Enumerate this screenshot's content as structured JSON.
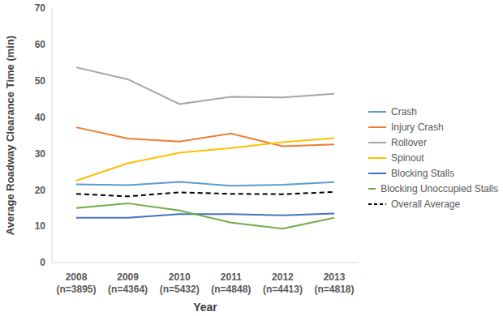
{
  "chart_data": {
    "type": "line",
    "x_label": "Year",
    "y_label": "Average Roadway Clearance Time (min)",
    "categories": [
      "2008\n(n=3895)",
      "2009\n(n=4364)",
      "2010\n(n=5432)",
      "2011\n(n=4848)",
      "2012\n(n=4413)",
      "2013\n(n=4818)"
    ],
    "ylim": [
      0,
      70
    ],
    "yticks": [
      0,
      10,
      20,
      30,
      40,
      50,
      60,
      70
    ],
    "grid": false,
    "legend": "right",
    "series": [
      {
        "name": "Crash",
        "color": "#5b9bd5",
        "line_style": "solid",
        "values": [
          21.5,
          21.3,
          22.2,
          21.1,
          21.4,
          22.1
        ]
      },
      {
        "name": "Injury Crash",
        "color": "#ed7d31",
        "line_style": "solid",
        "values": [
          37.2,
          34.1,
          33.3,
          35.5,
          32.0,
          32.5
        ]
      },
      {
        "name": "Rollover",
        "color": "#a5a5a5",
        "line_style": "solid",
        "values": [
          53.7,
          50.4,
          43.6,
          45.6,
          45.4,
          46.4
        ]
      },
      {
        "name": "Spinout",
        "color": "#ffc000",
        "line_style": "solid",
        "values": [
          22.5,
          27.3,
          30.2,
          31.5,
          33.1,
          34.2
        ]
      },
      {
        "name": "Blocking Stalls",
        "color": "#4472c4",
        "line_style": "solid",
        "values": [
          12.3,
          12.3,
          13.3,
          13.3,
          13.0,
          13.5
        ]
      },
      {
        "name": "Blocking Unoccupied Stalls",
        "color": "#70ad47",
        "line_style": "solid",
        "values": [
          15.0,
          16.3,
          14.3,
          11.0,
          9.3,
          12.3
        ]
      },
      {
        "name": "Overall Average",
        "color": "#000000",
        "line_style": "dashed",
        "values": [
          18.9,
          18.2,
          19.3,
          18.9,
          18.8,
          19.4
        ]
      }
    ]
  }
}
